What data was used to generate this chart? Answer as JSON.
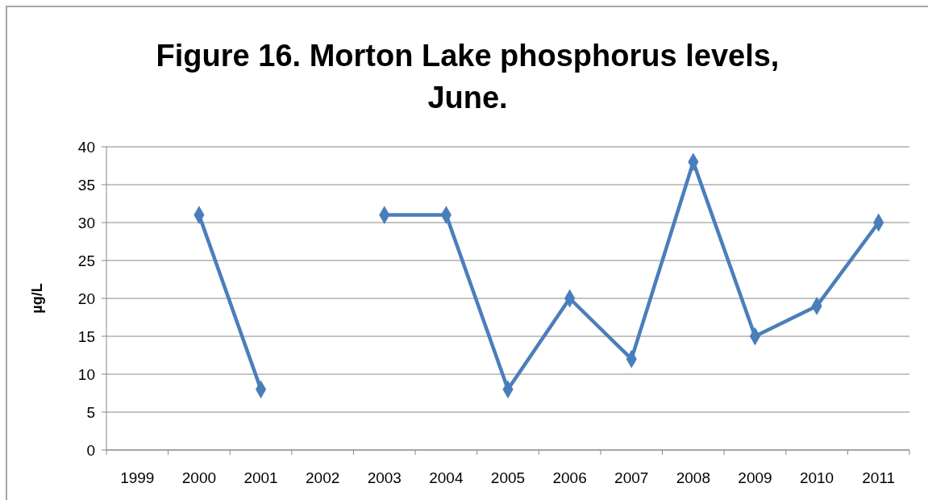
{
  "chart_data": {
    "type": "line",
    "title": "Figure 16. Morton Lake phosphorus levels, June.",
    "ylabel": "µg/L",
    "categories": [
      "1999",
      "2000",
      "2001",
      "2002",
      "2003",
      "2004",
      "2005",
      "2006",
      "2007",
      "2008",
      "2009",
      "2010",
      "2011"
    ],
    "series": [
      {
        "color": "#4a7ebb",
        "values": [
          null,
          31,
          8,
          null,
          31,
          31,
          8,
          20,
          12,
          38,
          15,
          19,
          30
        ]
      }
    ],
    "ylim": [
      0,
      40
    ],
    "yticks": [
      0,
      5,
      10,
      15,
      20,
      25,
      30,
      35,
      40
    ],
    "grid": "y",
    "marker": "diamond",
    "line_style": "solid"
  }
}
